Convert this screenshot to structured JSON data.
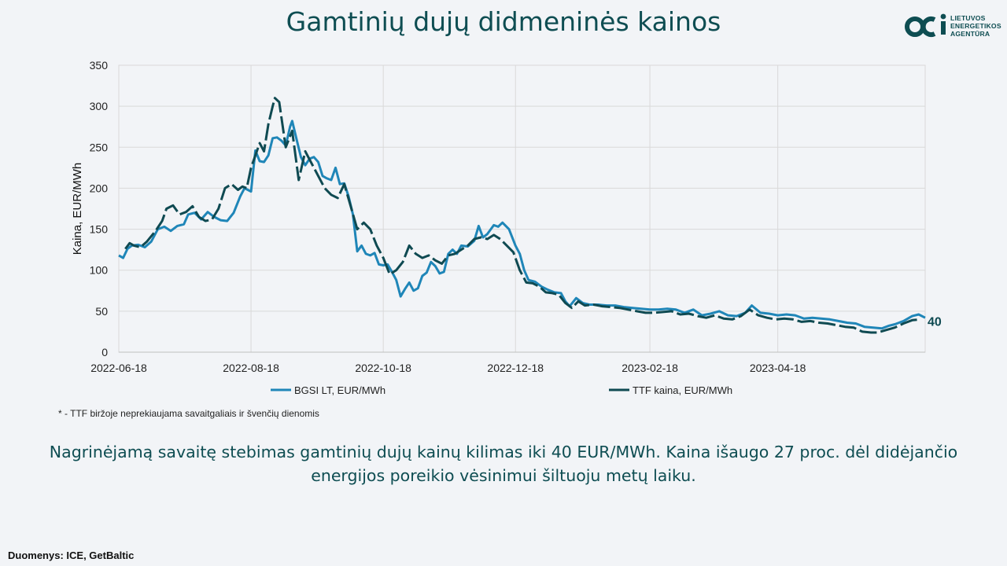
{
  "page": {
    "title": "Gamtinių dujų didmeninės kainos",
    "logo": {
      "lines": [
        "LIETUVOS",
        "ENERGETIKOS",
        "AGENTŪRA"
      ]
    },
    "footnote": "* - TTF biržoje neprekiaujama savaitgaliais ir švenčių dienomis",
    "summary": "Nagrinėjamą savaitę stebimas gamtinių dujų kainų kilimas iki 40 EUR/MWh. Kaina išaugo 27 proc. dėl didėjančio energijos poreikio vėsinimui šiltuoju metų laiku.",
    "source": "Duomenys: ICE, GetBaltic"
  },
  "chart_data": {
    "type": "line",
    "title": "",
    "xlabel": "",
    "ylabel": "Kaina, EUR/MWh",
    "ylim": [
      0,
      350
    ],
    "yticks": [
      0,
      50,
      100,
      150,
      200,
      250,
      300,
      350
    ],
    "xlim": [
      "2022-06-18",
      "2023-06-25"
    ],
    "xticks": [
      "2022-06-18",
      "2022-08-18",
      "2022-10-18",
      "2022-12-18",
      "2023-02-18",
      "2023-04-18"
    ],
    "grid": true,
    "legend_position": "bottom",
    "end_label": "40",
    "colors": {
      "bgsi": "#1f86b8",
      "ttf": "#0f4a52",
      "grid": "#d9d9d9",
      "axis": "#bfbfbf"
    },
    "series": [
      {
        "name": "BGSI LT, EUR/MWh",
        "style": "solid",
        "points": [
          [
            "2022-06-18",
            118
          ],
          [
            "2022-06-20",
            115
          ],
          [
            "2022-06-22",
            126
          ],
          [
            "2022-06-24",
            130
          ],
          [
            "2022-06-27",
            131
          ],
          [
            "2022-06-30",
            128
          ],
          [
            "2022-07-03",
            135
          ],
          [
            "2022-07-06",
            150
          ],
          [
            "2022-07-09",
            153
          ],
          [
            "2022-07-12",
            148
          ],
          [
            "2022-07-15",
            154
          ],
          [
            "2022-07-18",
            156
          ],
          [
            "2022-07-20",
            168
          ],
          [
            "2022-07-23",
            170
          ],
          [
            "2022-07-26",
            162
          ],
          [
            "2022-07-29",
            171
          ],
          [
            "2022-08-01",
            165
          ],
          [
            "2022-08-04",
            161
          ],
          [
            "2022-08-07",
            160
          ],
          [
            "2022-08-10",
            170
          ],
          [
            "2022-08-13",
            190
          ],
          [
            "2022-08-15",
            200
          ],
          [
            "2022-08-18",
            196
          ],
          [
            "2022-08-20",
            246
          ],
          [
            "2022-08-22",
            233
          ],
          [
            "2022-08-24",
            232
          ],
          [
            "2022-08-26",
            240
          ],
          [
            "2022-08-28",
            261
          ],
          [
            "2022-08-30",
            262
          ],
          [
            "2022-09-01",
            258
          ],
          [
            "2022-09-03",
            252
          ],
          [
            "2022-09-05",
            275
          ],
          [
            "2022-09-06",
            282
          ],
          [
            "2022-09-08",
            260
          ],
          [
            "2022-09-10",
            238
          ],
          [
            "2022-09-12",
            228
          ],
          [
            "2022-09-14",
            236
          ],
          [
            "2022-09-16",
            238
          ],
          [
            "2022-09-18",
            232
          ],
          [
            "2022-09-20",
            215
          ],
          [
            "2022-09-22",
            212
          ],
          [
            "2022-09-24",
            210
          ],
          [
            "2022-09-26",
            225
          ],
          [
            "2022-09-28",
            205
          ],
          [
            "2022-09-30",
            206
          ],
          [
            "2022-10-02",
            190
          ],
          [
            "2022-10-04",
            168
          ],
          [
            "2022-10-06",
            123
          ],
          [
            "2022-10-08",
            130
          ],
          [
            "2022-10-10",
            120
          ],
          [
            "2022-10-12",
            118
          ],
          [
            "2022-10-14",
            121
          ],
          [
            "2022-10-16",
            107
          ],
          [
            "2022-10-18",
            106
          ],
          [
            "2022-10-20",
            107
          ],
          [
            "2022-10-22",
            98
          ],
          [
            "2022-10-24",
            88
          ],
          [
            "2022-10-26",
            68
          ],
          [
            "2022-10-28",
            77
          ],
          [
            "2022-10-30",
            85
          ],
          [
            "2022-11-01",
            75
          ],
          [
            "2022-11-03",
            78
          ],
          [
            "2022-11-05",
            93
          ],
          [
            "2022-11-07",
            97
          ],
          [
            "2022-11-09",
            110
          ],
          [
            "2022-11-11",
            105
          ],
          [
            "2022-11-13",
            96
          ],
          [
            "2022-11-15",
            98
          ],
          [
            "2022-11-17",
            120
          ],
          [
            "2022-11-19",
            125
          ],
          [
            "2022-11-21",
            120
          ],
          [
            "2022-11-23",
            130
          ],
          [
            "2022-11-26",
            129
          ],
          [
            "2022-11-29",
            136
          ],
          [
            "2022-12-01",
            154
          ],
          [
            "2022-12-03",
            140
          ],
          [
            "2022-12-05",
            144
          ],
          [
            "2022-12-08",
            155
          ],
          [
            "2022-12-10",
            153
          ],
          [
            "2022-12-12",
            158
          ],
          [
            "2022-12-15",
            150
          ],
          [
            "2022-12-18",
            130
          ],
          [
            "2022-12-20",
            120
          ],
          [
            "2022-12-22",
            100
          ],
          [
            "2022-12-24",
            88
          ],
          [
            "2022-12-27",
            86
          ],
          [
            "2022-12-30",
            80
          ],
          [
            "2023-01-02",
            76
          ],
          [
            "2023-01-05",
            73
          ],
          [
            "2023-01-08",
            72
          ],
          [
            "2023-01-10",
            62
          ],
          [
            "2023-01-12",
            56
          ],
          [
            "2023-01-15",
            66
          ],
          [
            "2023-01-18",
            60
          ],
          [
            "2023-01-21",
            58
          ],
          [
            "2023-01-25",
            58
          ],
          [
            "2023-01-29",
            57
          ],
          [
            "2023-02-02",
            57
          ],
          [
            "2023-02-06",
            55
          ],
          [
            "2023-02-10",
            54
          ],
          [
            "2023-02-14",
            53
          ],
          [
            "2023-02-18",
            52
          ],
          [
            "2023-02-22",
            52
          ],
          [
            "2023-02-26",
            53
          ],
          [
            "2023-03-02",
            52
          ],
          [
            "2023-03-06",
            48
          ],
          [
            "2023-03-10",
            52
          ],
          [
            "2023-03-14",
            45
          ],
          [
            "2023-03-18",
            47
          ],
          [
            "2023-03-22",
            50
          ],
          [
            "2023-03-26",
            45
          ],
          [
            "2023-03-30",
            44
          ],
          [
            "2023-04-03",
            48
          ],
          [
            "2023-04-06",
            57
          ],
          [
            "2023-04-10",
            48
          ],
          [
            "2023-04-14",
            47
          ],
          [
            "2023-04-18",
            45
          ],
          [
            "2023-04-22",
            46
          ],
          [
            "2023-04-26",
            45
          ],
          [
            "2023-04-30",
            41
          ],
          [
            "2023-05-04",
            42
          ],
          [
            "2023-05-08",
            41
          ],
          [
            "2023-05-12",
            40
          ],
          [
            "2023-05-16",
            38
          ],
          [
            "2023-05-20",
            36
          ],
          [
            "2023-05-24",
            35
          ],
          [
            "2023-05-28",
            31
          ],
          [
            "2023-06-01",
            30
          ],
          [
            "2023-06-05",
            29
          ],
          [
            "2023-06-08",
            32
          ],
          [
            "2023-06-11",
            34
          ],
          [
            "2023-06-15",
            38
          ],
          [
            "2023-06-19",
            44
          ],
          [
            "2023-06-22",
            46
          ],
          [
            "2023-06-25",
            42
          ]
        ]
      },
      {
        "name": "TTF kaina, EUR/MWh",
        "style": "dashed",
        "points": [
          [
            "2022-06-21",
            126
          ],
          [
            "2022-06-23",
            133
          ],
          [
            "2022-06-25",
            130
          ],
          [
            "2022-06-28",
            128
          ],
          [
            "2022-07-01",
            135
          ],
          [
            "2022-07-05",
            148
          ],
          [
            "2022-07-08",
            160
          ],
          [
            "2022-07-10",
            175
          ],
          [
            "2022-07-13",
            179
          ],
          [
            "2022-07-16",
            168
          ],
          [
            "2022-07-19",
            171
          ],
          [
            "2022-07-22",
            178
          ],
          [
            "2022-07-25",
            165
          ],
          [
            "2022-07-28",
            160
          ],
          [
            "2022-07-31",
            162
          ],
          [
            "2022-08-03",
            175
          ],
          [
            "2022-08-06",
            200
          ],
          [
            "2022-08-09",
            205
          ],
          [
            "2022-08-12",
            198
          ],
          [
            "2022-08-14",
            202
          ],
          [
            "2022-08-16",
            200
          ],
          [
            "2022-08-18",
            225
          ],
          [
            "2022-08-20",
            240
          ],
          [
            "2022-08-22",
            255
          ],
          [
            "2022-08-24",
            245
          ],
          [
            "2022-08-26",
            278
          ],
          [
            "2022-08-28",
            300
          ],
          [
            "2022-08-29",
            310
          ],
          [
            "2022-08-31",
            305
          ],
          [
            "2022-09-03",
            250
          ],
          [
            "2022-09-06",
            270
          ],
          [
            "2022-09-09",
            210
          ],
          [
            "2022-09-12",
            245
          ],
          [
            "2022-09-15",
            230
          ],
          [
            "2022-09-18",
            215
          ],
          [
            "2022-09-21",
            200
          ],
          [
            "2022-09-24",
            192
          ],
          [
            "2022-09-27",
            188
          ],
          [
            "2022-09-30",
            205
          ],
          [
            "2022-10-03",
            178
          ],
          [
            "2022-10-06",
            150
          ],
          [
            "2022-10-09",
            158
          ],
          [
            "2022-10-12",
            150
          ],
          [
            "2022-10-15",
            130
          ],
          [
            "2022-10-18",
            115
          ],
          [
            "2022-10-21",
            95
          ],
          [
            "2022-10-24",
            100
          ],
          [
            "2022-10-27",
            110
          ],
          [
            "2022-10-30",
            130
          ],
          [
            "2022-11-02",
            120
          ],
          [
            "2022-11-05",
            115
          ],
          [
            "2022-11-08",
            118
          ],
          [
            "2022-11-11",
            112
          ],
          [
            "2022-11-14",
            108
          ],
          [
            "2022-11-17",
            118
          ],
          [
            "2022-11-20",
            120
          ],
          [
            "2022-11-23",
            125
          ],
          [
            "2022-11-26",
            130
          ],
          [
            "2022-11-29",
            138
          ],
          [
            "2022-12-02",
            140
          ],
          [
            "2022-12-05",
            138
          ],
          [
            "2022-12-08",
            143
          ],
          [
            "2022-12-11",
            138
          ],
          [
            "2022-12-14",
            130
          ],
          [
            "2022-12-17",
            122
          ],
          [
            "2022-12-20",
            100
          ],
          [
            "2022-12-23",
            85
          ],
          [
            "2022-12-26",
            84
          ],
          [
            "2022-12-29",
            80
          ],
          [
            "2023-01-01",
            73
          ],
          [
            "2023-01-04",
            72
          ],
          [
            "2023-01-07",
            70
          ],
          [
            "2023-01-10",
            60
          ],
          [
            "2023-01-13",
            54
          ],
          [
            "2023-01-16",
            62
          ],
          [
            "2023-01-19",
            57
          ],
          [
            "2023-01-23",
            58
          ],
          [
            "2023-01-27",
            56
          ],
          [
            "2023-01-31",
            55
          ],
          [
            "2023-02-04",
            54
          ],
          [
            "2023-02-08",
            52
          ],
          [
            "2023-02-12",
            50
          ],
          [
            "2023-02-16",
            48
          ],
          [
            "2023-02-20",
            48
          ],
          [
            "2023-02-24",
            49
          ],
          [
            "2023-02-28",
            50
          ],
          [
            "2023-03-04",
            46
          ],
          [
            "2023-03-08",
            47
          ],
          [
            "2023-03-12",
            44
          ],
          [
            "2023-03-16",
            42
          ],
          [
            "2023-03-20",
            45
          ],
          [
            "2023-03-24",
            41
          ],
          [
            "2023-03-28",
            40
          ],
          [
            "2023-04-01",
            44
          ],
          [
            "2023-04-05",
            52
          ],
          [
            "2023-04-09",
            45
          ],
          [
            "2023-04-13",
            42
          ],
          [
            "2023-04-17",
            40
          ],
          [
            "2023-04-21",
            41
          ],
          [
            "2023-04-25",
            40
          ],
          [
            "2023-04-29",
            37
          ],
          [
            "2023-05-03",
            38
          ],
          [
            "2023-05-07",
            36
          ],
          [
            "2023-05-11",
            35
          ],
          [
            "2023-05-15",
            33
          ],
          [
            "2023-05-19",
            31
          ],
          [
            "2023-05-23",
            30
          ],
          [
            "2023-05-27",
            25
          ],
          [
            "2023-05-31",
            24
          ],
          [
            "2023-06-03",
            24
          ],
          [
            "2023-06-07",
            27
          ],
          [
            "2023-06-11",
            30
          ],
          [
            "2023-06-15",
            35
          ],
          [
            "2023-06-19",
            39
          ],
          [
            "2023-06-23",
            40
          ]
        ]
      }
    ]
  }
}
